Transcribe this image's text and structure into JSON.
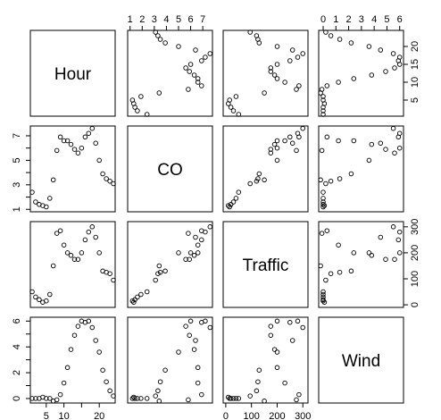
{
  "chart_data": {
    "type": "scatter",
    "title": "",
    "variables": [
      "Hour",
      "CO",
      "Traffic",
      "Wind"
    ],
    "grid": false,
    "diagonal_labels": [
      "Hour",
      "CO",
      "Traffic",
      "Wind"
    ],
    "ranges": {
      "Hour": [
        0.5,
        24.5
      ],
      "CO": [
        0.8,
        7.8
      ],
      "Traffic": [
        -10,
        320
      ],
      "Wind": [
        -0.35,
        6.3
      ]
    },
    "ticks": {
      "Hour": [
        5,
        10,
        15,
        20
      ],
      "CO": [
        1,
        2,
        3,
        4,
        5,
        6,
        7
      ],
      "Traffic": [
        0,
        100,
        200,
        300
      ],
      "Wind": [
        0,
        1,
        2,
        3,
        4,
        5,
        6
      ]
    },
    "tick_labels": {
      "top_CO": [
        "1",
        "2",
        "3",
        "4",
        "5",
        "6",
        "7"
      ],
      "top_Wind": [
        "0",
        "1",
        "2",
        "3",
        "4",
        "5",
        "6"
      ],
      "right_Hour": [
        "5",
        "10",
        "15",
        "20"
      ],
      "right_Traffic": [
        "0",
        "100",
        "200",
        "300"
      ],
      "left_CO": [
        "1",
        "3",
        "5",
        "7"
      ],
      "left_Wind": [
        "0",
        "2",
        "4",
        "6"
      ],
      "bottom_Hour": [
        "5",
        "10",
        "20"
      ],
      "bottom_Traffic": [
        "0",
        "100",
        "200",
        "300"
      ]
    },
    "observations": [
      {
        "Hour": 1,
        "CO": 2.4,
        "Traffic": 50,
        "Wind": 0.0
      },
      {
        "Hour": 2,
        "CO": 1.6,
        "Traffic": 30,
        "Wind": 0.0
      },
      {
        "Hour": 3,
        "CO": 1.4,
        "Traffic": 20,
        "Wind": 0.0
      },
      {
        "Hour": 4,
        "CO": 1.3,
        "Traffic": 10,
        "Wind": 0.1
      },
      {
        "Hour": 5,
        "CO": 1.2,
        "Traffic": 15,
        "Wind": 0.0
      },
      {
        "Hour": 6,
        "CO": 1.9,
        "Traffic": 40,
        "Wind": 0.0
      },
      {
        "Hour": 7,
        "CO": 3.4,
        "Traffic": 150,
        "Wind": -0.2
      },
      {
        "Hour": 8,
        "CO": 5.8,
        "Traffic": 275,
        "Wind": -0.1
      },
      {
        "Hour": 9,
        "CO": 6.9,
        "Traffic": 285,
        "Wind": 0.3
      },
      {
        "Hour": 10,
        "CO": 6.6,
        "Traffic": 230,
        "Wind": 1.2
      },
      {
        "Hour": 11,
        "CO": 6.6,
        "Traffic": 200,
        "Wind": 2.4
      },
      {
        "Hour": 12,
        "CO": 6.3,
        "Traffic": 190,
        "Wind": 3.8
      },
      {
        "Hour": 13,
        "CO": 5.9,
        "Traffic": 175,
        "Wind": 4.9
      },
      {
        "Hour": 14,
        "CO": 5.6,
        "Traffic": 175,
        "Wind": 5.6
      },
      {
        "Hour": 15,
        "CO": 6.0,
        "Traffic": 200,
        "Wind": 6.0
      },
      {
        "Hour": 16,
        "CO": 6.9,
        "Traffic": 250,
        "Wind": 5.9
      },
      {
        "Hour": 17,
        "CO": 7.2,
        "Traffic": 280,
        "Wind": 6.0
      },
      {
        "Hour": 18,
        "CO": 7.6,
        "Traffic": 300,
        "Wind": 5.5
      },
      {
        "Hour": 19,
        "CO": 6.4,
        "Traffic": 260,
        "Wind": 4.5
      },
      {
        "Hour": 20,
        "CO": 5.0,
        "Traffic": 200,
        "Wind": 3.6
      },
      {
        "Hour": 21,
        "CO": 3.9,
        "Traffic": 130,
        "Wind": 2.2
      },
      {
        "Hour": 22,
        "CO": 3.5,
        "Traffic": 125,
        "Wind": 1.3
      },
      {
        "Hour": 23,
        "CO": 3.3,
        "Traffic": 120,
        "Wind": 0.6
      },
      {
        "Hour": 24,
        "CO": 3.1,
        "Traffic": 95,
        "Wind": 0.2
      }
    ]
  }
}
